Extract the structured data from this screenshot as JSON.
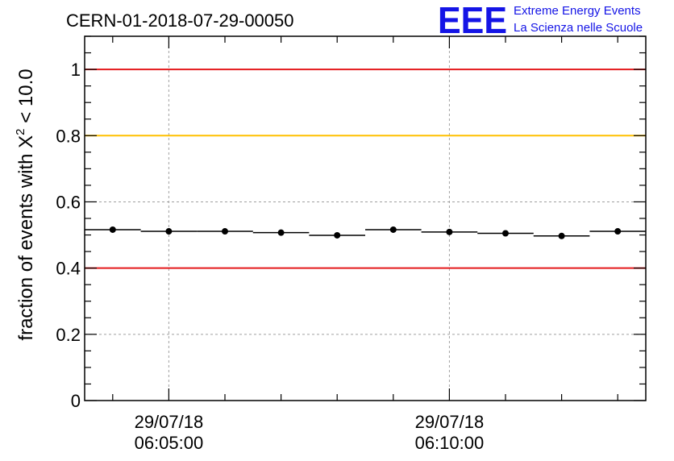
{
  "chart_data": {
    "type": "scatter",
    "title": "CERN-01-2018-07-29-00050",
    "ylabel_prefix": "fraction of events with ",
    "ylabel_symbol": "X",
    "ylabel_sup": "2",
    "ylabel_suffix": " < 10.0",
    "xlabel": "",
    "ylim": [
      0,
      1.1
    ],
    "xlim_minutes": [
      3.5,
      13.5
    ],
    "grid": true,
    "y_ticks": [
      {
        "value": 0,
        "label": "0"
      },
      {
        "value": 0.2,
        "label": "0.2"
      },
      {
        "value": 0.4,
        "label": "0.4"
      },
      {
        "value": 0.6,
        "label": "0.6"
      },
      {
        "value": 0.8,
        "label": "0.8"
      },
      {
        "value": 1.0,
        "label": "1"
      }
    ],
    "x_ticks": [
      {
        "minutes": 5,
        "date": "29/07/18",
        "time": "06:05:00"
      },
      {
        "minutes": 10,
        "date": "29/07/18",
        "time": "06:10:00"
      }
    ],
    "reference_lines": [
      {
        "value": 1.0,
        "color": "#e41a1c"
      },
      {
        "value": 0.8,
        "color": "#ffc000"
      },
      {
        "value": 0.4,
        "color": "#e41a1c"
      }
    ],
    "x_bin_width_minutes": 1.0,
    "x": [
      4.0,
      5.0,
      6.0,
      7.0,
      8.0,
      9.0,
      10.0,
      11.0,
      12.0,
      13.0
    ],
    "values": [
      0.516,
      0.511,
      0.511,
      0.507,
      0.499,
      0.516,
      0.509,
      0.505,
      0.497,
      0.511
    ]
  },
  "logo": {
    "acronym": "EEE",
    "line1": "Extreme Energy Events",
    "line2": "La Scienza nelle Scuole"
  },
  "colors": {
    "red": "#e41a1c",
    "yellow": "#ffc000",
    "blue": "#1414e6",
    "grid": "#a0a0a0"
  }
}
